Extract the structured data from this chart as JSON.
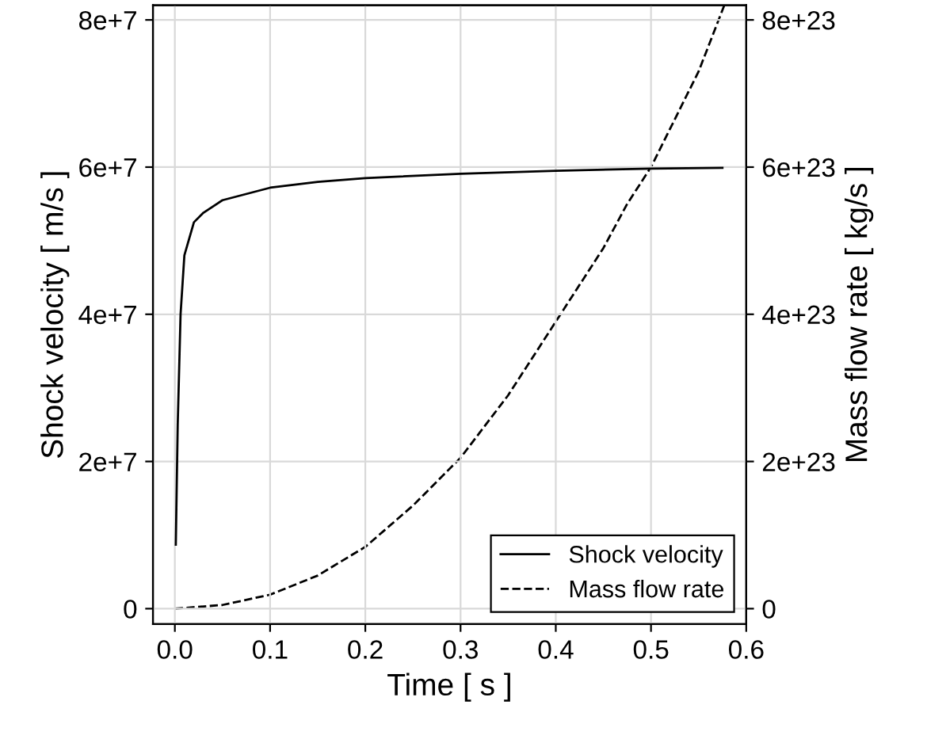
{
  "chart_data": {
    "type": "line",
    "xlabel": "Time [ s ]",
    "ylabel": "Shock velocity [ m/s ]",
    "y2label": "Mass flow rate [ kg/s ]",
    "xlim": [
      -0.023,
      0.6
    ],
    "xticks": [
      {
        "value": 0,
        "label": "0.0"
      },
      0.1,
      0.2,
      0.3,
      0.4,
      0.5,
      0.6
    ],
    "ylim": [
      -2100000,
      82000000
    ],
    "yticks": [
      0,
      {
        "value": 20000000,
        "label": "2e+7"
      },
      {
        "value": 40000000,
        "label": "4e+7"
      },
      {
        "value": 60000000,
        "label": "6e+7"
      },
      {
        "value": 80000000,
        "label": "8e+7"
      }
    ],
    "y2lim": [
      -2.1e+22,
      8.2e+23
    ],
    "y2ticks": [
      0,
      {
        "value": 2e+23,
        "label": "2e+23"
      },
      {
        "value": 4e+23,
        "label": "4e+23"
      },
      {
        "value": 6e+23,
        "label": "6e+23"
      },
      {
        "value": 8e+23,
        "label": "8e+23"
      }
    ],
    "grid": true,
    "legend": "bottom right",
    "series": [
      {
        "name": "Shock velocity",
        "color": "#000000",
        "line_style": "solid",
        "x": [
          0.001,
          0.003,
          0.006,
          0.01,
          0.02,
          0.03,
          0.05,
          0.1,
          0.15,
          0.2,
          0.3,
          0.4,
          0.5,
          0.575
        ],
        "values": [
          8700000,
          25000000,
          40000000,
          48000000,
          52500000,
          53800000,
          55500000,
          57200000,
          58000000,
          58500000,
          59100000,
          59500000,
          59800000,
          59900000
        ]
      },
      {
        "name": "Mass flow rate",
        "color": "#000000",
        "line_style": "dashed",
        "axis": "y2",
        "x": [
          0,
          0.05,
          0.1,
          0.15,
          0.2,
          0.25,
          0.3,
          0.35,
          0.4,
          0.45,
          0.475,
          0.5,
          0.55,
          0.577
        ],
        "values": [
          0,
          5e+21,
          1.9e+22,
          4.5e+22,
          8.4e+22,
          1.4e+23,
          2.05e+23,
          2.9e+23,
          3.9e+23,
          4.9e+23,
          5.5e+23,
          6e+23,
          7.3e+23,
          8.2e+23
        ]
      }
    ]
  }
}
